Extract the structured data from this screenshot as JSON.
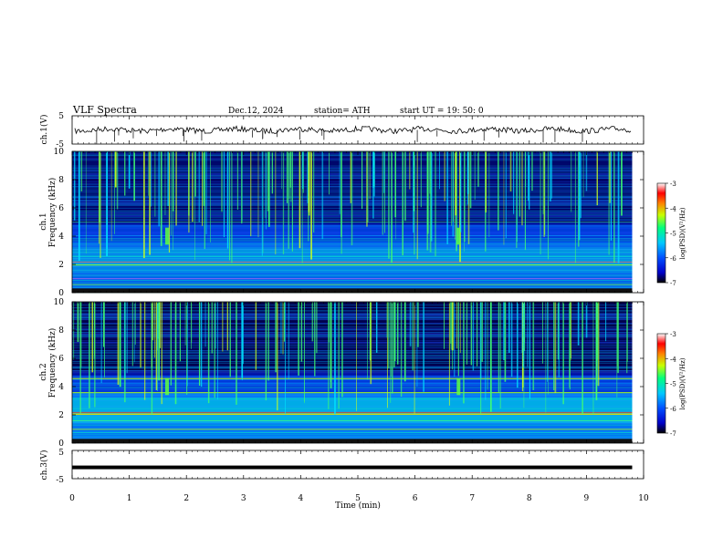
{
  "header": {
    "title": "VLF  Spectra",
    "date": "Dec.12, 2024",
    "station": "station= ATH",
    "start": "start  UT  =    19: 50: 0"
  },
  "chart_data": {
    "type": "heatmap",
    "xlabel": "Time  (min)",
    "x_ticks": [
      "0",
      "1",
      "2",
      "3",
      "4",
      "5",
      "6",
      "7",
      "8",
      "9",
      "10"
    ],
    "xlim": [
      0,
      10
    ],
    "panels": [
      {
        "id": "ch1_voltage",
        "type": "line",
        "ylabel": "ch.1(V)",
        "ylim": [
          -5,
          5
        ],
        "y_ticks": [
          "5",
          "-5"
        ]
      },
      {
        "id": "ch1_spectrogram",
        "type": "heatmap",
        "ylabel": "ch.1\nFrequency  (kHz)",
        "ylim": [
          0,
          10
        ],
        "y_ticks": [
          "0",
          "2",
          "4",
          "6",
          "8",
          "10"
        ],
        "colorbar": {
          "label": "log(PSD)(V²/Hz)",
          "ticks": [
            "-3",
            "-4",
            "-5",
            "-6",
            "-7"
          ]
        }
      },
      {
        "id": "ch2_spectrogram",
        "type": "heatmap",
        "ylabel": "ch.2\nFrequency  (kHz)",
        "ylim": [
          0,
          10
        ],
        "y_ticks": [
          "0",
          "2",
          "4",
          "6",
          "8",
          "10"
        ],
        "colorbar": {
          "label": "log(PSD)(V²/Hz)",
          "ticks": [
            "-3",
            "-4",
            "-5",
            "-6",
            "-7"
          ]
        }
      },
      {
        "id": "ch3_voltage",
        "type": "line",
        "ylabel": "ch.3(V)",
        "ylim": [
          -5,
          5
        ],
        "y_ticks": [
          "5",
          "-5"
        ]
      }
    ],
    "data_end_min": 9.8,
    "ch1_line_level_v": 0,
    "ch3_line_level_v": -1,
    "colormap": [
      "#000000",
      "#0000c8",
      "#0050ff",
      "#00c8ff",
      "#00ff80",
      "#c8ff00",
      "#ff8000",
      "#ff0000",
      "#ffffff"
    ]
  }
}
